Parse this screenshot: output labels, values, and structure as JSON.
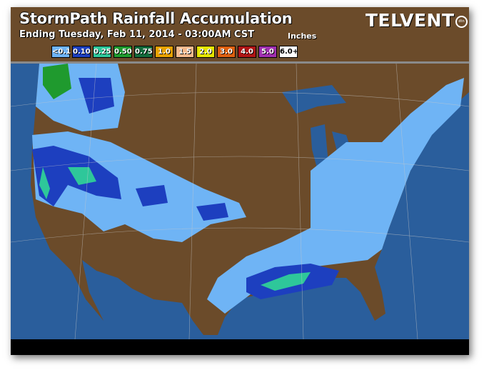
{
  "header": {
    "title": "StormPath Rainfall Accumulation",
    "subtitle": "Ending Tuesday, Feb 11, 2014 - 03:00AM CST",
    "units": "Inches",
    "logo": "TELVENT",
    "logo_badge": "dtn"
  },
  "legend": [
    {
      "label": "<0.1",
      "color": "#6fb4f5"
    },
    {
      "label": "0.10",
      "color": "#1d3fbf"
    },
    {
      "label": "0.25",
      "color": "#2ec79a"
    },
    {
      "label": "0.50",
      "color": "#1f9a2e"
    },
    {
      "label": "0.75",
      "color": "#136b3c"
    },
    {
      "label": "1.0",
      "color": "#e8a200"
    },
    {
      "label": "1.5",
      "color": "#f5b98c"
    },
    {
      "label": "2.0",
      "color": "#e5e500"
    },
    {
      "label": "3.0",
      "color": "#dd6010"
    },
    {
      "label": "4.0",
      "color": "#b01515"
    },
    {
      "label": "5.0",
      "color": "#a030b0"
    },
    {
      "label": "6.0+",
      "color": "#ffffff"
    }
  ],
  "colors": {
    "water": "#2a5e9c",
    "land": "#6b4b2a",
    "rain_light": "#6fb4f5"
  }
}
